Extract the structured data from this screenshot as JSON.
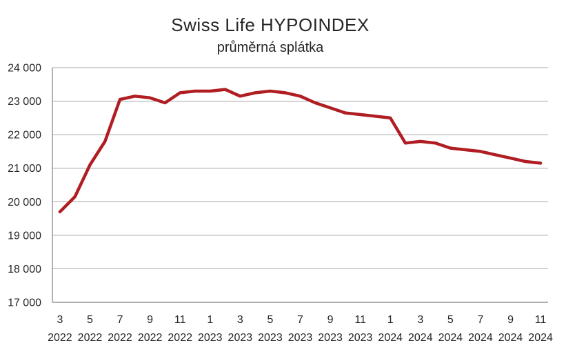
{
  "title": "Swiss Life HYPOINDEX",
  "subtitle": "průměrná splátka",
  "colors": {
    "line": "#B01E24",
    "gridline": "#A6A6A6",
    "axis": "#808080",
    "text": "#262626"
  },
  "chart_data": {
    "type": "line",
    "title": "Swiss Life HYPOINDEX",
    "subtitle": "průměrná splátka",
    "xlabel": "",
    "ylabel": "",
    "ylim": [
      17000,
      24000
    ],
    "grid": "horizontal",
    "legend": "none",
    "x": [
      "3/2022",
      "4/2022",
      "5/2022",
      "6/2022",
      "7/2022",
      "8/2022",
      "9/2022",
      "10/2022",
      "11/2022",
      "12/2022",
      "1/2023",
      "2/2023",
      "3/2023",
      "4/2023",
      "5/2023",
      "6/2023",
      "7/2023",
      "8/2023",
      "9/2023",
      "10/2023",
      "11/2023",
      "12/2023",
      "1/2024",
      "2/2024",
      "3/2024",
      "4/2024",
      "5/2024",
      "6/2024",
      "7/2024",
      "8/2024",
      "9/2024",
      "10/2024",
      "11/2024"
    ],
    "series": [
      {
        "name": "průměrná splátka",
        "values": [
          19700,
          20150,
          21100,
          21800,
          23050,
          23150,
          23100,
          22950,
          23250,
          23300,
          23300,
          23350,
          23150,
          23250,
          23300,
          23250,
          23150,
          22950,
          22800,
          22650,
          22600,
          22550,
          22500,
          21750,
          21800,
          21750,
          21600,
          21550,
          21500,
          21400,
          21300,
          21200,
          21150
        ]
      }
    ],
    "y_ticks": [
      17000,
      18000,
      19000,
      20000,
      21000,
      22000,
      23000,
      24000
    ],
    "y_tick_labels": [
      "17 000",
      "18 000",
      "19 000",
      "20 000",
      "21 000",
      "22 000",
      "23 000",
      "24 000"
    ],
    "x_tick_labels": [
      {
        "month": "3",
        "year": "2022"
      },
      {
        "month": "5",
        "year": "2022"
      },
      {
        "month": "7",
        "year": "2022"
      },
      {
        "month": "9",
        "year": "2022"
      },
      {
        "month": "11",
        "year": "2022"
      },
      {
        "month": "1",
        "year": "2023"
      },
      {
        "month": "3",
        "year": "2023"
      },
      {
        "month": "5",
        "year": "2023"
      },
      {
        "month": "7",
        "year": "2023"
      },
      {
        "month": "9",
        "year": "2023"
      },
      {
        "month": "11",
        "year": "2023"
      },
      {
        "month": "1",
        "year": "2024"
      },
      {
        "month": "3",
        "year": "2024"
      },
      {
        "month": "5",
        "year": "2024"
      },
      {
        "month": "7",
        "year": "2024"
      },
      {
        "month": "9",
        "year": "2024"
      },
      {
        "month": "11",
        "year": "2024"
      }
    ],
    "x_tick_every": 2
  }
}
